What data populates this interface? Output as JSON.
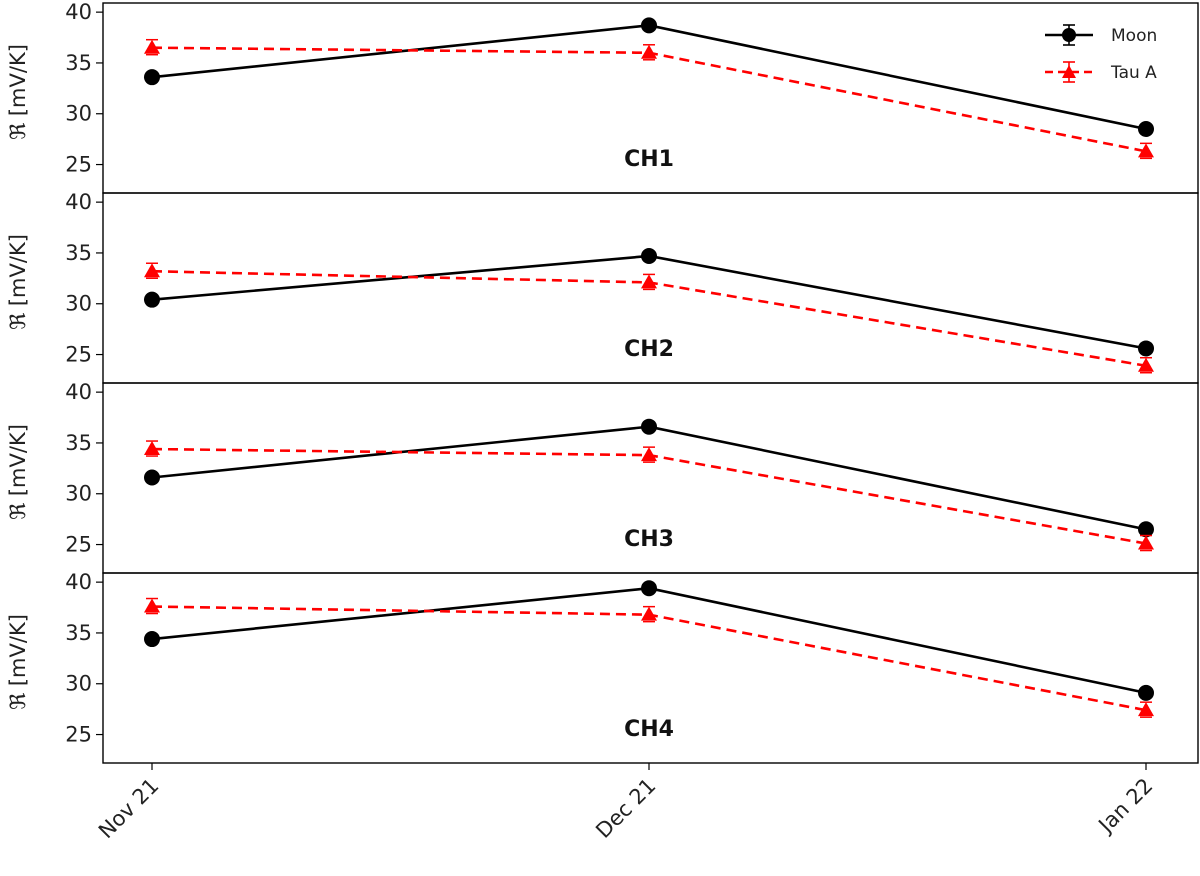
{
  "chart_data": {
    "type": "line",
    "title": "",
    "xlabel": "",
    "ylabel": "ℜ [mV/K]",
    "categories": [
      "Nov 21",
      "Dec 21",
      "Jan 22"
    ],
    "ylim": [
      22.2,
      40.9
    ],
    "yticks": [
      25,
      30,
      35,
      40
    ],
    "grid": false,
    "legend_position": "upper right (top panel)",
    "legend": [
      "Moon",
      "Tau A"
    ],
    "panels": [
      {
        "label": "CH1",
        "series": [
          {
            "name": "Moon",
            "color": "#000000",
            "style": "solid",
            "marker": "circle",
            "values": [
              33.6,
              38.7,
              28.5
            ]
          },
          {
            "name": "Tau A",
            "color": "#ff0000",
            "style": "dashed",
            "marker": "triangle",
            "values": [
              36.5,
              36.0,
              26.3
            ]
          }
        ]
      },
      {
        "label": "CH2",
        "series": [
          {
            "name": "Moon",
            "color": "#000000",
            "style": "solid",
            "marker": "circle",
            "values": [
              30.4,
              34.7,
              25.6
            ]
          },
          {
            "name": "Tau A",
            "color": "#ff0000",
            "style": "dashed",
            "marker": "triangle",
            "values": [
              33.2,
              32.1,
              23.9
            ]
          }
        ]
      },
      {
        "label": "CH3",
        "series": [
          {
            "name": "Moon",
            "color": "#000000",
            "style": "solid",
            "marker": "circle",
            "values": [
              31.6,
              36.6,
              26.5
            ]
          },
          {
            "name": "Tau A",
            "color": "#ff0000",
            "style": "dashed",
            "marker": "triangle",
            "values": [
              34.4,
              33.8,
              25.1
            ]
          }
        ]
      },
      {
        "label": "CH4",
        "series": [
          {
            "name": "Moon",
            "color": "#000000",
            "style": "solid",
            "marker": "circle",
            "values": [
              34.4,
              39.4,
              29.1
            ]
          },
          {
            "name": "Tau A",
            "color": "#ff0000",
            "style": "dashed",
            "marker": "triangle",
            "values": [
              37.6,
              36.8,
              27.4
            ]
          }
        ]
      }
    ]
  }
}
